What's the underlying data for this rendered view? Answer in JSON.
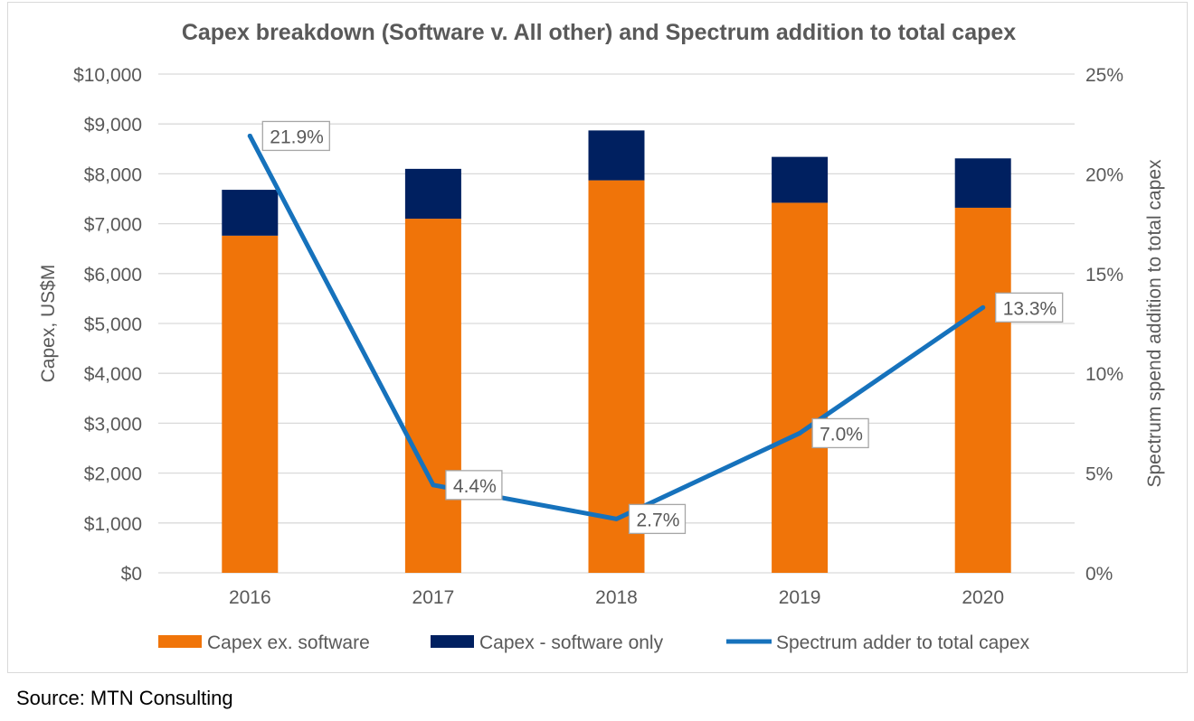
{
  "source_note": "Source: MTN Consulting",
  "colors": {
    "capex_ex_software": "#F07409",
    "software_only": "#002060",
    "spectrum_line": "#1672BC",
    "grid": "#D9D9D9",
    "axis_text": "#595959",
    "title_text": "#595959"
  },
  "chart_data": {
    "type": "bar",
    "stacked": true,
    "title": "Capex breakdown (Software v. All other) and Spectrum addition to total capex",
    "ylabel": "Capex, US$M",
    "y2label": "Spectrum spend addition to total capex",
    "ylim": [
      0,
      10000
    ],
    "y2lim": [
      0,
      25
    ],
    "yticks": [
      "$0",
      "$1,000",
      "$2,000",
      "$3,000",
      "$4,000",
      "$5,000",
      "$6,000",
      "$7,000",
      "$8,000",
      "$9,000",
      "$10,000"
    ],
    "y2ticks": [
      "0%",
      "5%",
      "10%",
      "15%",
      "20%",
      "25%"
    ],
    "grid": true,
    "legend_position": "bottom",
    "categories": [
      "2016",
      "2017",
      "2018",
      "2019",
      "2020"
    ],
    "series": [
      {
        "name": "Capex ex. software",
        "type": "bar",
        "axis": "left",
        "values": [
          6760,
          7100,
          7870,
          7420,
          7320
        ]
      },
      {
        "name": "Capex - software only",
        "type": "bar",
        "axis": "left",
        "values": [
          920,
          1000,
          1000,
          920,
          990
        ]
      },
      {
        "name": "Spectrum adder to total capex",
        "type": "line",
        "axis": "right",
        "values": [
          21.9,
          4.4,
          2.7,
          7.0,
          13.3
        ],
        "labels": [
          "21.9%",
          "4.4%",
          "2.7%",
          "7.0%",
          "13.3%"
        ]
      }
    ]
  }
}
